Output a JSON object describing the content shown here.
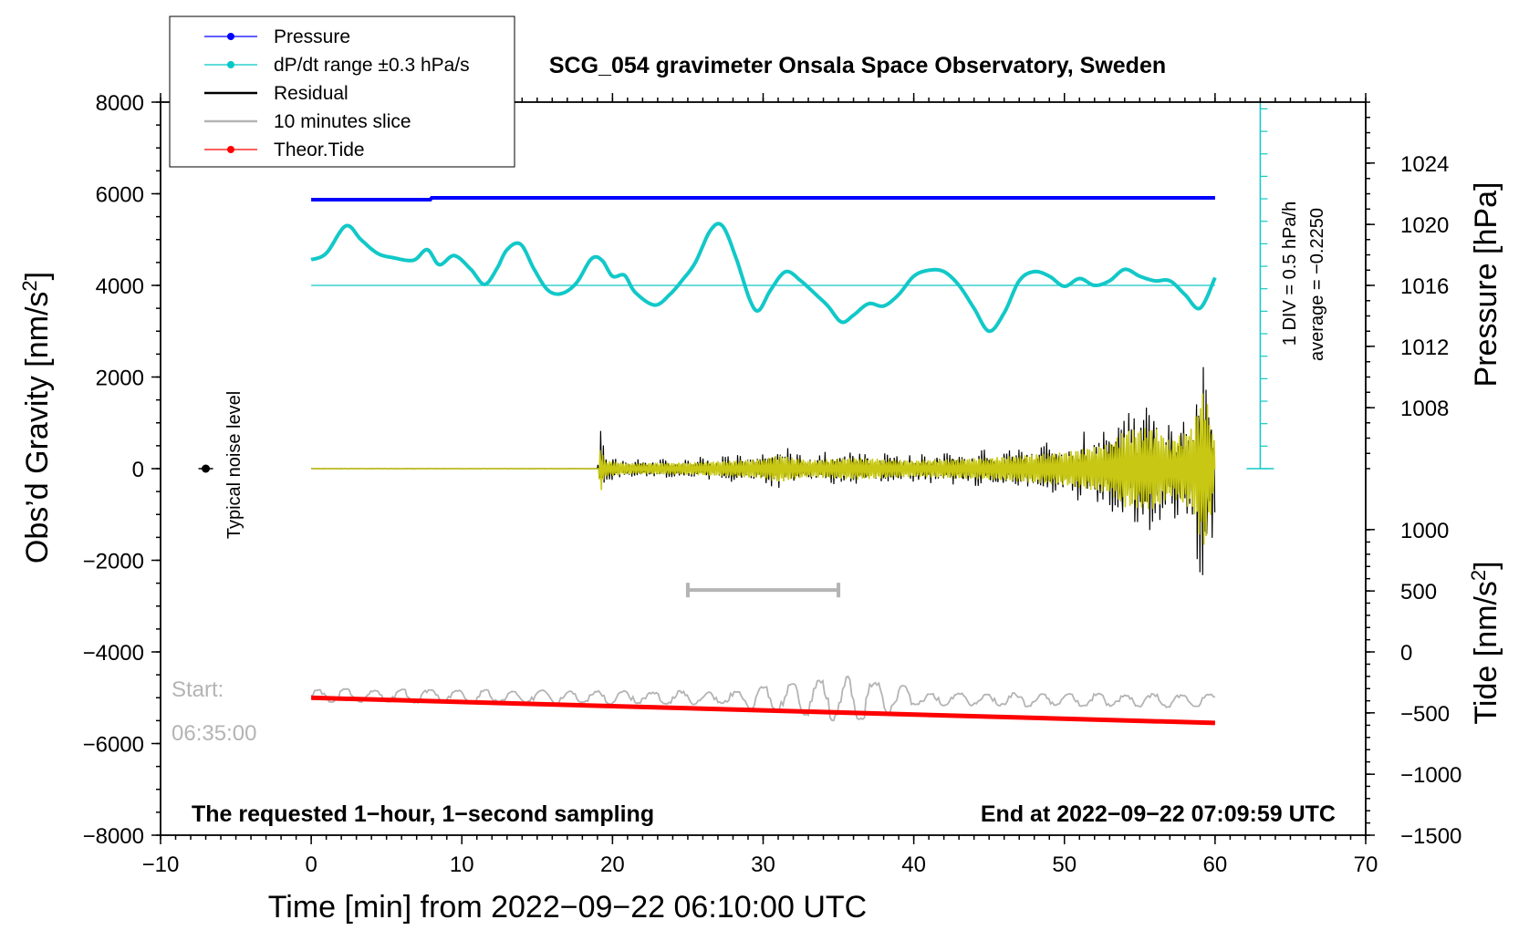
{
  "chart_data": {
    "type": "line",
    "title": "SCG_054 gravimeter Onsala Space Observatory, Sweden",
    "xlabel": "Time [min] from 2022−09−22 06:10:00 UTC",
    "ylabel_left": "Obs’d Gravity [nm/s",
    "ylabel_left_sup": "2",
    "ylabel_left_end": "]",
    "ylabel_pressure": "Pressure [hPa]",
    "ylabel_tide": "Tide [nm/s",
    "ylabel_tide_sup": "2",
    "ylabel_tide_end": "]",
    "xlim": [
      -10,
      70
    ],
    "ylim": [
      -8000,
      8000
    ],
    "x_ticks": [
      -10,
      0,
      10,
      20,
      30,
      40,
      50,
      60,
      70
    ],
    "x_tick_labels": [
      "−10",
      "0",
      "10",
      "20",
      "30",
      "40",
      "50",
      "60",
      "70"
    ],
    "y_ticks": [
      8000,
      6000,
      4000,
      2000,
      0,
      -2000,
      -4000,
      -6000,
      -8000
    ],
    "y_tick_labels": [
      "8000",
      "6000",
      "4000",
      "2000",
      "0",
      "−2000",
      "−4000",
      "−6000",
      "−8000"
    ],
    "pressure_axis": {
      "ticks": [
        1024,
        1020,
        1016,
        1012,
        1008
      ],
      "tick_labels": [
        "1024",
        "1020",
        "1016",
        "1012",
        "1008"
      ],
      "gravity_at": [
        6670,
        5330,
        4000,
        2670,
        1330
      ]
    },
    "tide_axis": {
      "ticks": [
        1000,
        500,
        0,
        -500,
        -1000,
        -1500
      ],
      "tick_labels": [
        "1000",
        "500",
        "0",
        "−500",
        "−1000",
        "−1500"
      ],
      "gravity_at": [
        -1330,
        -2670,
        -4000,
        -5330,
        -6670,
        -8000
      ]
    },
    "legend": [
      {
        "label": "Pressure",
        "color": "#0000ff",
        "marker": true
      },
      {
        "label": "dP/dt range ±0.3 hPa/s",
        "color": "#00c8c8",
        "marker": true
      },
      {
        "label": "Residual",
        "color": "#000000",
        "marker": false
      },
      {
        "label": "10 minutes slice",
        "color": "#b4b4b4",
        "marker": false
      },
      {
        "label": "Theor.Tide",
        "color": "#ff0000",
        "marker": true
      }
    ],
    "series": [
      {
        "name": "Pressure",
        "color": "#0000ff",
        "x": [
          0,
          7.9,
          8.0,
          60
        ],
        "y": [
          5870,
          5870,
          5910,
          5910
        ]
      },
      {
        "name": "dP/dt",
        "color": "#12c8c8",
        "x": [
          0,
          1,
          2.3,
          3.3,
          4.4,
          5.5,
          6.8,
          7.7,
          8.5,
          9.5,
          10.6,
          11.5,
          12.3,
          13.0,
          13.9,
          14.8,
          15.7,
          16.6,
          17.6,
          18.6,
          19.3,
          20.0,
          20.8,
          21.5,
          22.8,
          23.8,
          24.6,
          25.5,
          26.5,
          27.3,
          28.2,
          29.1,
          29.7,
          30.5,
          31.5,
          32.5,
          33.5,
          34.3,
          35.2,
          36.0,
          37.0,
          38.0,
          39.0,
          40.0,
          41.0,
          42.0,
          43.0,
          44.0,
          45.0,
          46.0,
          47.0,
          48.0,
          49.0,
          50.0,
          51.0,
          52.0,
          53.0,
          54.0,
          55.0,
          56.0,
          57.0,
          58.0,
          59.0,
          60.0
        ],
        "y": [
          4560,
          4700,
          5300,
          5000,
          4700,
          4600,
          4550,
          4780,
          4450,
          4650,
          4350,
          4020,
          4350,
          4780,
          4900,
          4350,
          3900,
          3820,
          4050,
          4580,
          4550,
          4200,
          4220,
          3850,
          3570,
          3800,
          4100,
          4500,
          5200,
          5300,
          4600,
          3700,
          3450,
          3900,
          4300,
          4100,
          3800,
          3550,
          3200,
          3350,
          3600,
          3550,
          3800,
          4200,
          4330,
          4300,
          4000,
          3500,
          3000,
          3400,
          4100,
          4300,
          4200,
          3980,
          4150,
          4000,
          4100,
          4350,
          4200,
          4100,
          4100,
          3800,
          3500,
          4170
        ]
      },
      {
        "name": "Residual",
        "color": "#000000"
      },
      {
        "name": "Residual (filtered)",
        "color": "#c8c814"
      },
      {
        "name": "10 minutes slice",
        "color": "#b4b4b4"
      },
      {
        "name": "Theor.Tide",
        "color": "#ff0000",
        "x": [
          0,
          60
        ],
        "y": [
          -5000,
          -5550
        ]
      }
    ],
    "residual_envelope": {
      "x": [
        0,
        19.0,
        19.2,
        19.5,
        21,
        25,
        30,
        31,
        33,
        36,
        40,
        45,
        50,
        53,
        54,
        56,
        57,
        58.5,
        59,
        59.3,
        59.6,
        60
      ],
      "amp": [
        5,
        5,
        900,
        300,
        200,
        220,
        350,
        500,
        300,
        400,
        300,
        400,
        600,
        900,
        1400,
        1500,
        1000,
        1500,
        2500,
        3000,
        2000,
        900
      ]
    },
    "noise_marker": {
      "x": -7,
      "y": 0
    },
    "slice_bar": {
      "x0": 25,
      "x1": 35,
      "y": -2650
    },
    "annotations": {
      "noise_label": "Typical noise level",
      "start_label": "Start:",
      "start_time": "06:35:00",
      "scale_label": "1 DIV = 0.5 hPa/h",
      "average_label": "average = −0.2250",
      "bottom_left": "The requested 1−hour, 1−second sampling",
      "bottom_right": "End at 2022−09−22 07:09:59 UTC"
    }
  }
}
